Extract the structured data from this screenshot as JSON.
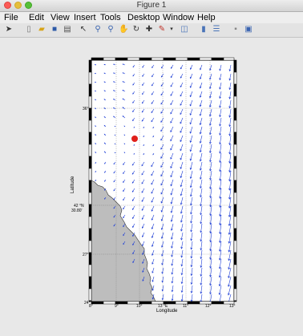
{
  "window": {
    "title": "Figure 1"
  },
  "menu": {
    "items": [
      "File",
      "Edit",
      "View",
      "Insert",
      "Tools",
      "Desktop",
      "Window",
      "Help"
    ]
  },
  "toolbar": {
    "icons": [
      "arrow-icon",
      "new-figure-icon",
      "open-file-icon",
      "save-icon",
      "print-icon",
      "pointer-icon",
      "zoom-in-icon",
      "zoom-out-icon",
      "pan-icon",
      "rotate-icon",
      "data-cursor-icon",
      "brush-icon",
      "brush-dropdown-icon",
      "link-icon",
      "colorbar-icon",
      "legend-icon",
      "hide-plot-tools-icon",
      "show-plot-tools-icon"
    ]
  },
  "map": {
    "ylabel": "Latitude",
    "xlabel": "Longitude",
    "xtick_labels": [
      "8°",
      "9°",
      "10°",
      "11°",
      "12°",
      "13°"
    ],
    "ytick_labels": [
      "36°",
      "27°",
      "24°"
    ],
    "center_lon_label": "13 °E",
    "center_lat_label": "42 °N",
    "center_lat_value": "30.80'",
    "marker_color": "#e0201a",
    "arrow_color": "#1f3fd6",
    "land_color": "#bdbdbd"
  }
}
